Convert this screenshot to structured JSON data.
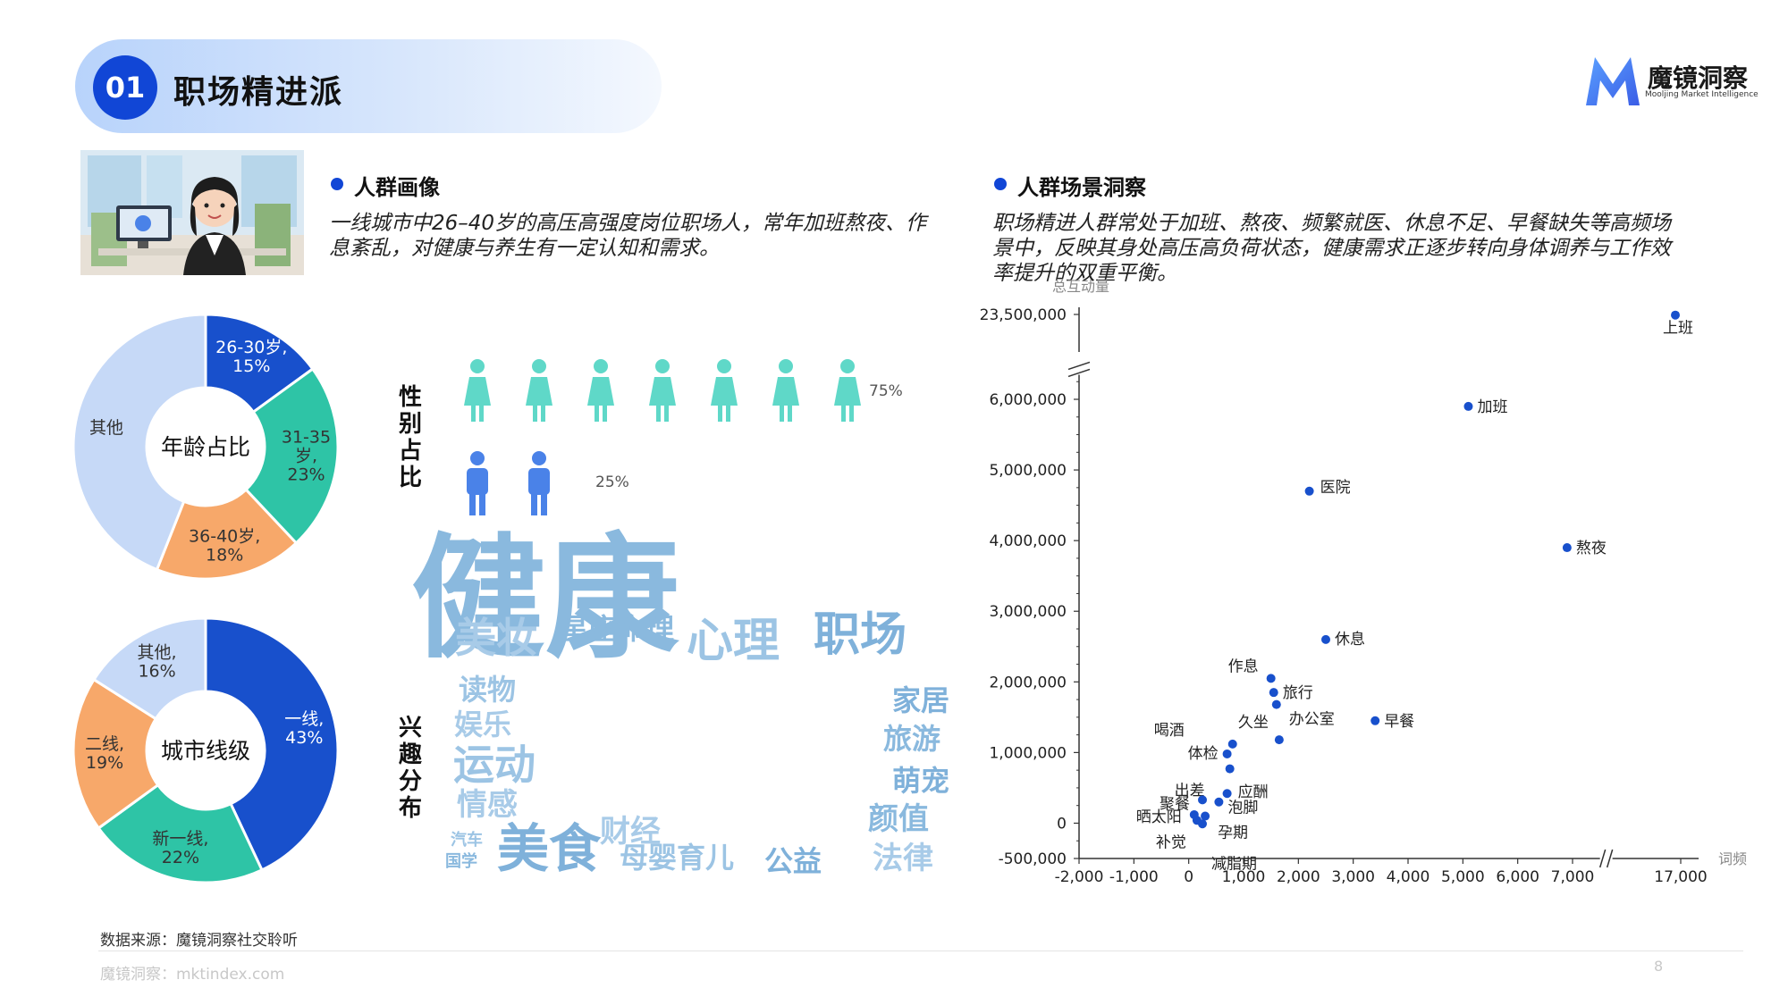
{
  "header": {
    "number": "01",
    "title": "职场精进派"
  },
  "brand": {
    "name": "魔镜洞察",
    "tagline": "Mooljing Market Intelligence",
    "color": "#4a7cf0"
  },
  "persona": {
    "title": "人群画像",
    "description": "一线城市中26–40岁的高压高强度岗位职场人，常年加班熬夜、作息紊乱，对健康与养生有一定认知和需求。"
  },
  "scene": {
    "title": "人群场景洞察",
    "description": "职场精进人群常处于加班、熬夜、频繁就医、休息不足、早餐缺失等高频场景中，反映其身处高压高负荷状态，健康需求正逐步转向身体调养与工作效率提升的双重平衡。"
  },
  "gender": {
    "label": "性别占比",
    "female_pct": "75%",
    "male_pct": "25%",
    "female_icons": 7,
    "male_icons": 2,
    "female_color": "#5fd8c8",
    "male_color": "#4a82e8"
  },
  "interest_label": "兴趣分布",
  "wordcloud": [
    {
      "text": "健康",
      "size": 150,
      "x": 610,
      "y": 722
    },
    {
      "text": "心理",
      "size": 52,
      "x": 820,
      "y": 735
    },
    {
      "text": "职场",
      "size": 52,
      "x": 962,
      "y": 728
    },
    {
      "text": "美妆",
      "size": 46,
      "x": 555,
      "y": 730
    },
    {
      "text": "星座命理",
      "size": 32,
      "x": 690,
      "y": 715
    },
    {
      "text": "读物",
      "size": 32,
      "x": 545,
      "y": 783
    },
    {
      "text": "家居",
      "size": 32,
      "x": 1030,
      "y": 795
    },
    {
      "text": "娱乐",
      "size": 32,
      "x": 540,
      "y": 822
    },
    {
      "text": "旅游",
      "size": 32,
      "x": 1020,
      "y": 838
    },
    {
      "text": "运动",
      "size": 46,
      "x": 553,
      "y": 872
    },
    {
      "text": "萌宠",
      "size": 32,
      "x": 1030,
      "y": 885
    },
    {
      "text": "情感",
      "size": 34,
      "x": 545,
      "y": 912
    },
    {
      "text": "颜值",
      "size": 34,
      "x": 1005,
      "y": 928
    },
    {
      "text": "汽车",
      "size": 18,
      "x": 522,
      "y": 946
    },
    {
      "text": "美食",
      "size": 58,
      "x": 614,
      "y": 970
    },
    {
      "text": "财经",
      "size": 34,
      "x": 705,
      "y": 942
    },
    {
      "text": "国学",
      "size": 18,
      "x": 516,
      "y": 970
    },
    {
      "text": "母婴育儿",
      "size": 32,
      "x": 757,
      "y": 971
    },
    {
      "text": "公益",
      "size": 32,
      "x": 887,
      "y": 975
    },
    {
      "text": "法律",
      "size": 34,
      "x": 1010,
      "y": 972
    }
  ],
  "chart_data": [
    {
      "type": "pie",
      "title": "年龄占比",
      "slices": [
        {
          "label": "26-30岁,\n15%",
          "value": 15,
          "color": "#1850cc"
        },
        {
          "label": "31-35\n岁,\n23%",
          "value": 23,
          "color": "#2ec4a6"
        },
        {
          "label": "36-40岁,\n18%",
          "value": 18,
          "color": "#f7a86a"
        },
        {
          "label": "其他",
          "value": 44,
          "color": "#c6d9f7"
        }
      ]
    },
    {
      "type": "pie",
      "title": "城市线级",
      "slices": [
        {
          "label": "一线,\n43%",
          "value": 43,
          "color": "#1850cc"
        },
        {
          "label": "新一线,\n22%",
          "value": 22,
          "color": "#2ec4a6"
        },
        {
          "label": "二线,\n19%",
          "value": 19,
          "color": "#f7a86a"
        },
        {
          "label": "其他,\n16%",
          "value": 16,
          "color": "#c6d9f7"
        }
      ]
    },
    {
      "type": "scatter",
      "ylabel": "总互动量",
      "xlabel": "词频",
      "x_ticks": [
        "-2,000",
        "-1,000",
        "0",
        "1,000",
        "2,000",
        "3,000",
        "4,000",
        "5,000",
        "6,000",
        "7,000",
        "17,000"
      ],
      "y_ticks": [
        "-500,000",
        "0",
        "1,000,000",
        "2,000,000",
        "3,000,000",
        "4,000,000",
        "5,000,000",
        "6,000,000",
        "23,500,000"
      ],
      "axis_break_x": [
        7500,
        17000
      ],
      "axis_break_y": [
        6500000,
        23000000
      ],
      "color": "#1850cc",
      "points": [
        {
          "label": "上班",
          "x": 16800,
          "y": 23300000
        },
        {
          "label": "加班",
          "x": 5100,
          "y": 5900000
        },
        {
          "label": "医院",
          "x": 2200,
          "y": 4700000
        },
        {
          "label": "熬夜",
          "x": 6900,
          "y": 3900000
        },
        {
          "label": "休息",
          "x": 2500,
          "y": 2600000
        },
        {
          "label": "作息",
          "x": 1500,
          "y": 2050000
        },
        {
          "label": "旅行",
          "x": 1550,
          "y": 1850000
        },
        {
          "label": "办公室",
          "x": 1600,
          "y": 1680000
        },
        {
          "label": "早餐",
          "x": 3400,
          "y": 1450000
        },
        {
          "label": "久坐",
          "x": 1650,
          "y": 1180000
        },
        {
          "label": "喝酒",
          "x": 800,
          "y": 1120000
        },
        {
          "label": "体检",
          "x": 700,
          "y": 980000
        },
        {
          "label": "出差",
          "x": 750,
          "y": 770000
        },
        {
          "label": "应酬",
          "x": 700,
          "y": 420000
        },
        {
          "label": "聚餐",
          "x": 250,
          "y": 330000
        },
        {
          "label": "泡脚",
          "x": 550,
          "y": 300000
        },
        {
          "label": "晒太阳",
          "x": 100,
          "y": 120000
        },
        {
          "label": "孕期",
          "x": 300,
          "y": 100000
        },
        {
          "label": "补觉",
          "x": 150,
          "y": 40000
        },
        {
          "label": "减脂期",
          "x": 250,
          "y": -10000
        }
      ]
    }
  ],
  "footer": {
    "source": "数据来源：魔镜洞察社交聆听",
    "site": "魔镜洞察：mktindex.com",
    "page": "8"
  }
}
